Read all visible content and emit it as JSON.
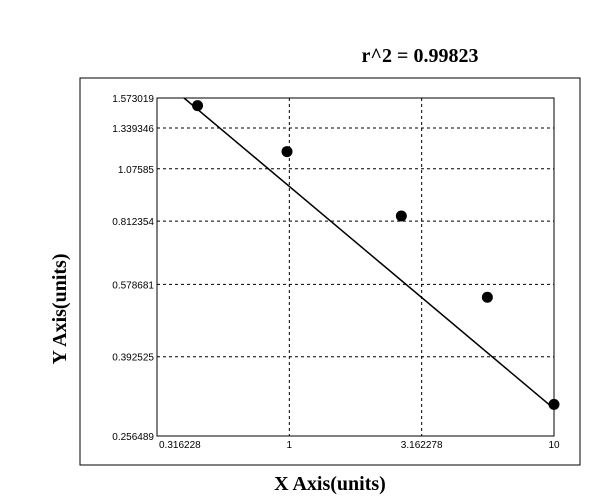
{
  "chart_data": {
    "type": "scatter",
    "annotation": "r^2 = 0.99823",
    "xlabel": "X Axis(units)",
    "ylabel": "Y Axis(units)",
    "x_scale": "log",
    "y_scale": "log",
    "xlim": [
      0.316228,
      10
    ],
    "ylim": [
      0.256489,
      1.573019
    ],
    "x_ticks": [
      "0.316228",
      "1",
      "3.162278",
      "10"
    ],
    "x_tick_values": [
      0.316228,
      1,
      3.162278,
      10
    ],
    "y_ticks": [
      "1.573019",
      "1.339346",
      "1.07585",
      "0.812354",
      "0.578681",
      "0.392525",
      "0.256489"
    ],
    "y_tick_values": [
      1.573019,
      1.339346,
      1.07585,
      0.812354,
      0.578681,
      0.392525,
      0.256489
    ],
    "grid": true,
    "points": [
      {
        "x": 0.45,
        "y": 1.51
      },
      {
        "x": 0.98,
        "y": 1.18
      },
      {
        "x": 2.65,
        "y": 0.835
      },
      {
        "x": 5.6,
        "y": 0.54
      },
      {
        "x": 10,
        "y": 0.304
      }
    ],
    "fit_line": {
      "x": [
        0.4,
        10
      ],
      "y": [
        1.573019,
        0.297
      ]
    },
    "colors": {
      "points": "#000000",
      "line": "#000000",
      "grid": "#000000",
      "frame": "#000000",
      "plot_bg": "#ffffff"
    }
  }
}
